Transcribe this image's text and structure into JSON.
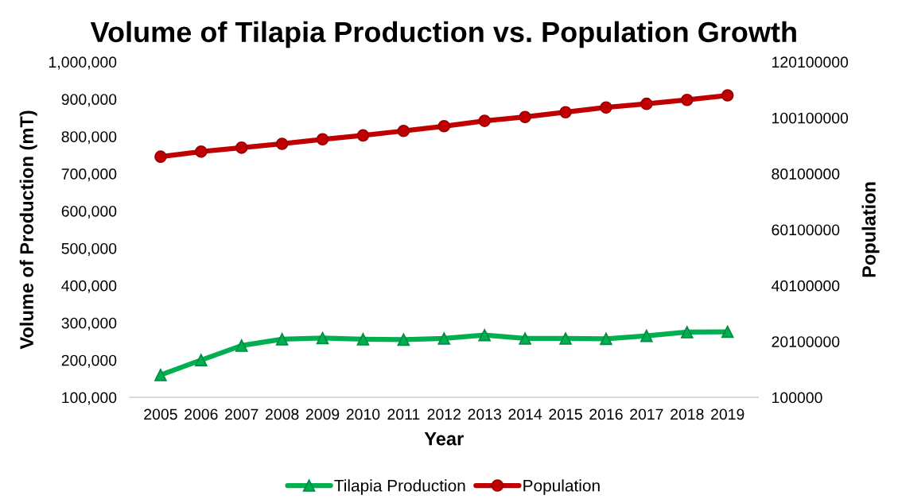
{
  "chart_data": {
    "type": "line",
    "title": "Volume of Tilapia Production vs. Population Growth",
    "xlabel": "Year",
    "ylabel": "Volume of Production (mT)",
    "y2label": "Population",
    "categories": [
      "2005",
      "2006",
      "2007",
      "2008",
      "2009",
      "2010",
      "2011",
      "2012",
      "2013",
      "2014",
      "2015",
      "2016",
      "2017",
      "2018",
      "2019"
    ],
    "series": [
      {
        "name": "Tilapia Production",
        "color": "#00b050",
        "marker": "triangle",
        "values": [
          160000,
          200000,
          239000,
          256000,
          259000,
          256000,
          255000,
          258000,
          267000,
          258000,
          258000,
          257000,
          265000,
          275000,
          276000
        ]
      },
      {
        "name": "Population",
        "color": "#c00000",
        "marker": "circle",
        "axis": "y2",
        "values": [
          86200000,
          88000000,
          89400000,
          90800000,
          92400000,
          93800000,
          95400000,
          97100000,
          99000000,
          100400000,
          102100000,
          103800000,
          105100000,
          106500000,
          108100000
        ]
      }
    ],
    "ylim": [
      100000,
      1000000
    ],
    "yticks": [
      {
        "value": 100000,
        "label": "100,000"
      },
      {
        "value": 200000,
        "label": "200,000"
      },
      {
        "value": 300000,
        "label": "300,000"
      },
      {
        "value": 400000,
        "label": "400,000"
      },
      {
        "value": 500000,
        "label": "500,000"
      },
      {
        "value": 600000,
        "label": "600,000"
      },
      {
        "value": 700000,
        "label": "700,000"
      },
      {
        "value": 800000,
        "label": "800,000"
      },
      {
        "value": 900000,
        "label": "900,000"
      },
      {
        "value": 1000000,
        "label": "1,000,000"
      }
    ],
    "y2lim": [
      100000,
      120100000
    ],
    "y2ticks": [
      100000,
      20100000,
      40100000,
      60100000,
      80100000,
      100100000,
      120100000
    ],
    "grid": false,
    "legend": "bottom",
    "line_style": "solid"
  }
}
